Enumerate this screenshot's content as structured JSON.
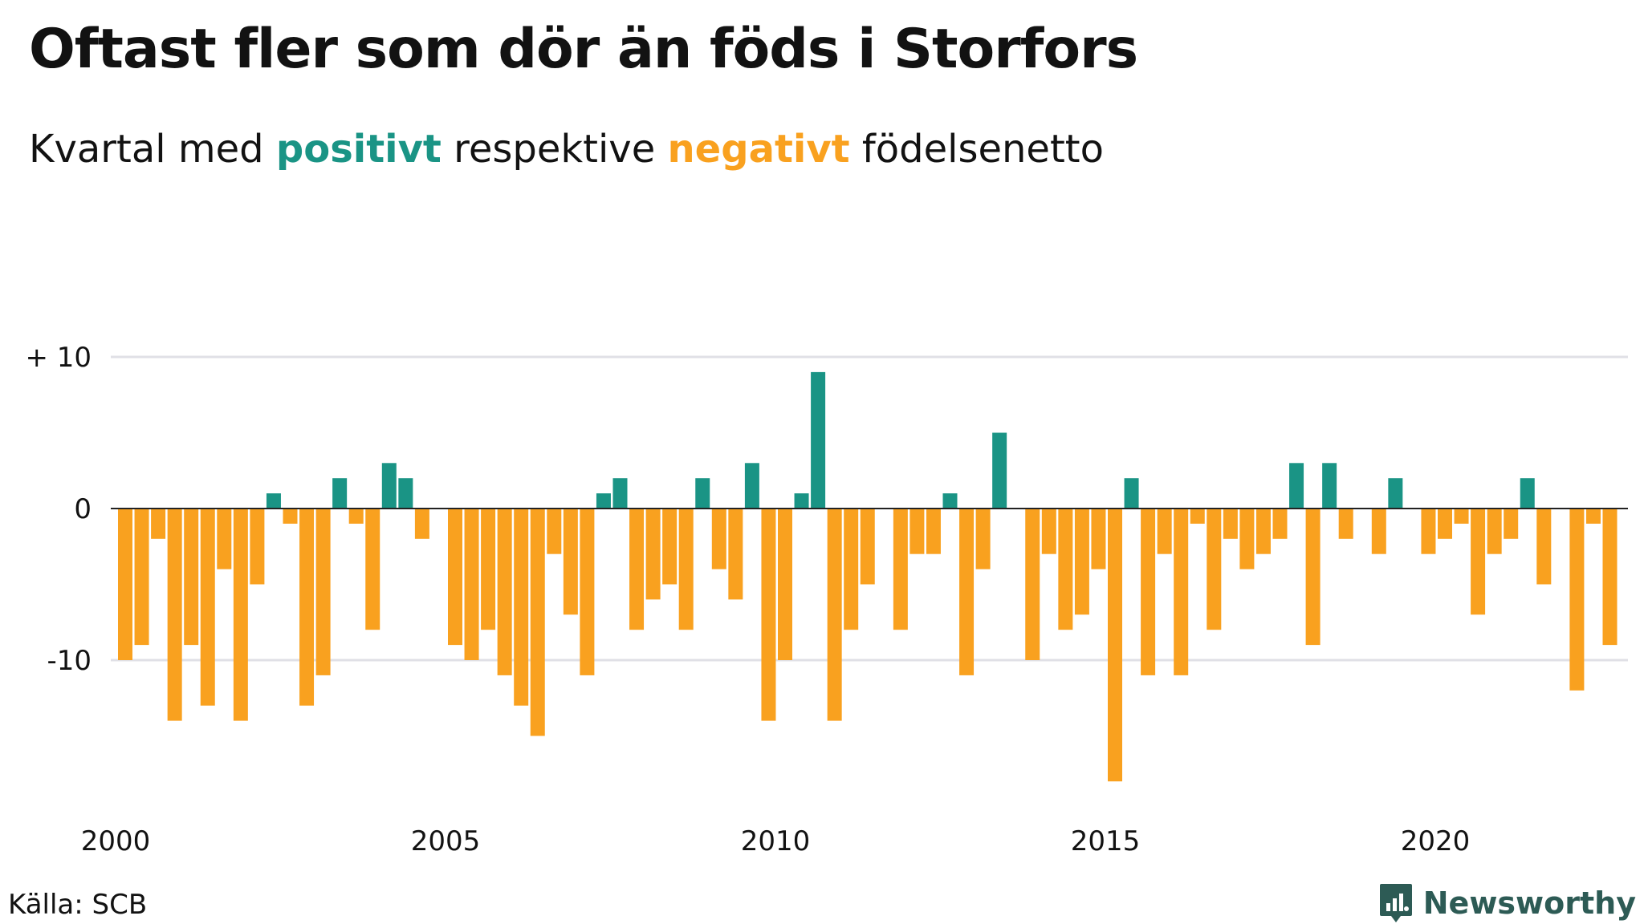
{
  "title": "Oftast fler som dör än föds i Storfors",
  "subtitle": {
    "prefix": "Kvartal med ",
    "positive_word": "positivt",
    "middle": " respektive ",
    "negative_word": "negativt",
    "suffix": " födelsenetto"
  },
  "source": "Källa: SCB",
  "brand": "Newsworthy",
  "colors": {
    "positive": "#1a9485",
    "negative": "#f9a11f",
    "grid": "#e0e0e6",
    "zero_line": "#222222",
    "text": "#121212",
    "brand": "#2d5b55"
  },
  "chart_data": {
    "type": "bar",
    "title": "Oftast fler som dör än föds i Storfors",
    "subtitle": "Kvartal med positivt respektive negativt födelsenetto",
    "xlabel": "",
    "ylabel": "",
    "x_start": "2000 Q1",
    "frequency": "quarterly",
    "ylim": [
      -19,
      10
    ],
    "y_ticks": [
      {
        "value": 10,
        "label": "+ 10"
      },
      {
        "value": 0,
        "label": "0"
      },
      {
        "value": -10,
        "label": "-10"
      }
    ],
    "x_ticks": [
      "2000",
      "2005",
      "2010",
      "2015",
      "2020"
    ],
    "grid": true,
    "legend": "none",
    "values": [
      -10,
      -9,
      -2,
      -14,
      -9,
      -13,
      -4,
      -14,
      -5,
      1,
      -1,
      -13,
      -11,
      2,
      -1,
      -8,
      3,
      2,
      -2,
      0,
      -9,
      -10,
      -8,
      -11,
      -13,
      -15,
      -3,
      -7,
      -11,
      1,
      2,
      -8,
      -6,
      -5,
      -8,
      2,
      -4,
      -6,
      3,
      -14,
      -10,
      1,
      9,
      -14,
      -8,
      -5,
      0,
      -8,
      -3,
      -3,
      1,
      -11,
      -4,
      5,
      0,
      -10,
      -3,
      -8,
      -7,
      -4,
      -18,
      2,
      -11,
      -3,
      -11,
      -1,
      -8,
      -2,
      -4,
      -3,
      -2,
      3,
      -9,
      3,
      -2,
      0,
      -3,
      2,
      0,
      -3,
      -2,
      -1,
      -7,
      -3,
      -2,
      2,
      -5,
      0,
      -12,
      -1,
      -9
    ]
  }
}
